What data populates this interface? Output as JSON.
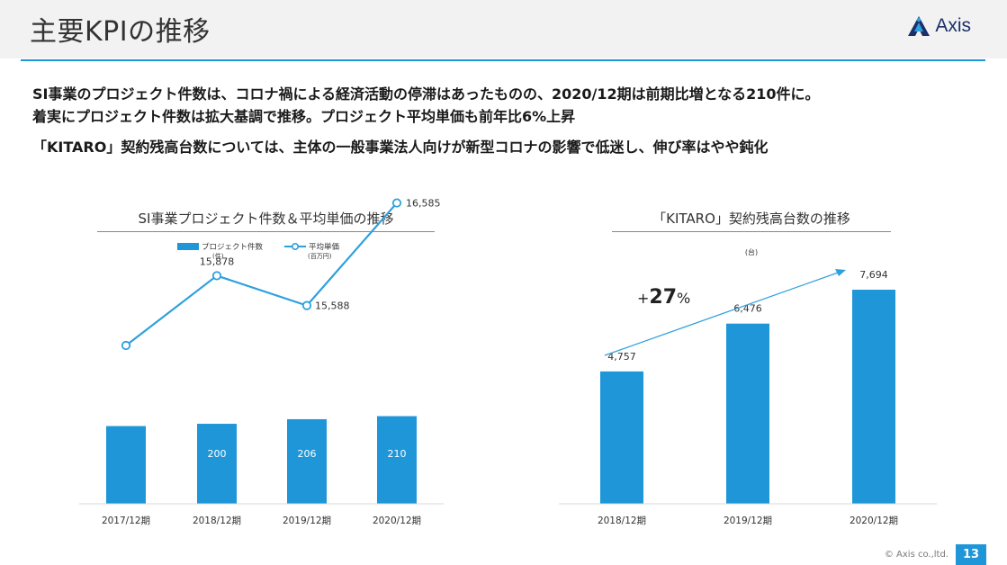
{
  "page": {
    "title": "主要KPIの推移",
    "logo_text": "Axis",
    "lead_lines": [
      "SI事業のプロジェクト件数は、コロナ禍による経済活動の停滞はあったものの、2020/12期は前期比増となる210件に。",
      "着実にプロジェクト件数は拡大基調で推移。プロジェクト平均単価も前年比6%上昇",
      "「KITARO」契約残高台数については、主体の一般事業法人向けが新型コロナの影響で低迷し、伸び率はやや鈍化"
    ],
    "copyright": "© Axis co.,ltd.",
    "page_number": "13",
    "accent_color": "#1f96d8"
  },
  "chart_data": [
    {
      "type": "bar",
      "title": "SI事業プロジェクト件数＆平均単価の推移",
      "categories": [
        "2017/12期",
        "2018/12期",
        "2019/12期",
        "2020/12期"
      ],
      "series": [
        {
          "name": "プロジェクト件数",
          "unit": "(件)",
          "kind": "bar",
          "values": [
            197,
            200,
            206,
            210
          ],
          "labels": [
            "",
            "200",
            "206",
            "210"
          ],
          "color": "#1f96d8"
        },
        {
          "name": "平均単価",
          "unit": "(百万円)",
          "kind": "line",
          "values": [
            15200,
            15878,
            15588,
            16585
          ],
          "labels": [
            "",
            "15,878",
            "15,588",
            "16,585"
          ],
          "color": "#2ea0de"
        }
      ]
    },
    {
      "type": "bar",
      "title": "「KITARO」契約残高台数の推移",
      "unit": "(台)",
      "categories": [
        "2018/12期",
        "2019/12期",
        "2020/12期"
      ],
      "values": [
        4757,
        6476,
        7694
      ],
      "labels": [
        "4,757",
        "6,476",
        "7,694"
      ],
      "annotation": {
        "prefix": "+",
        "value": "27",
        "suffix": "%"
      },
      "color": "#1f96d8"
    }
  ]
}
